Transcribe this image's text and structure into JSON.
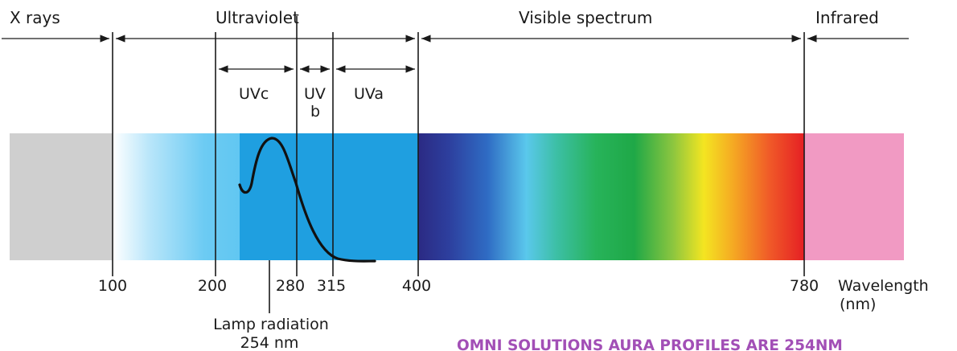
{
  "regions": {
    "xrays": "X rays",
    "ultraviolet": "Ultraviolet",
    "visible": "Visible spectrum",
    "infrared": "Infrared"
  },
  "uv_bands": {
    "uvc": "UVc",
    "uvb_line1": "UV",
    "uvb_line2": "b",
    "uva": "UVa"
  },
  "ticks": [
    "100",
    "200",
    "280",
    "315",
    "400",
    "780"
  ],
  "axis_label": {
    "line1": "Wavelength",
    "line2": "(nm)"
  },
  "lamp": {
    "line1": "Lamp radiation",
    "line2": "254 nm"
  },
  "caption": "OMNI SOLUTIONS AURA PROFILES ARE 254NM",
  "colors": {
    "xray_band": "#cfcfcf",
    "uv_light": "#63c7f2",
    "uv_dark": "#1f9fe0",
    "infrared_band": "#f19ac3",
    "caption": "#a24fb6"
  }
}
